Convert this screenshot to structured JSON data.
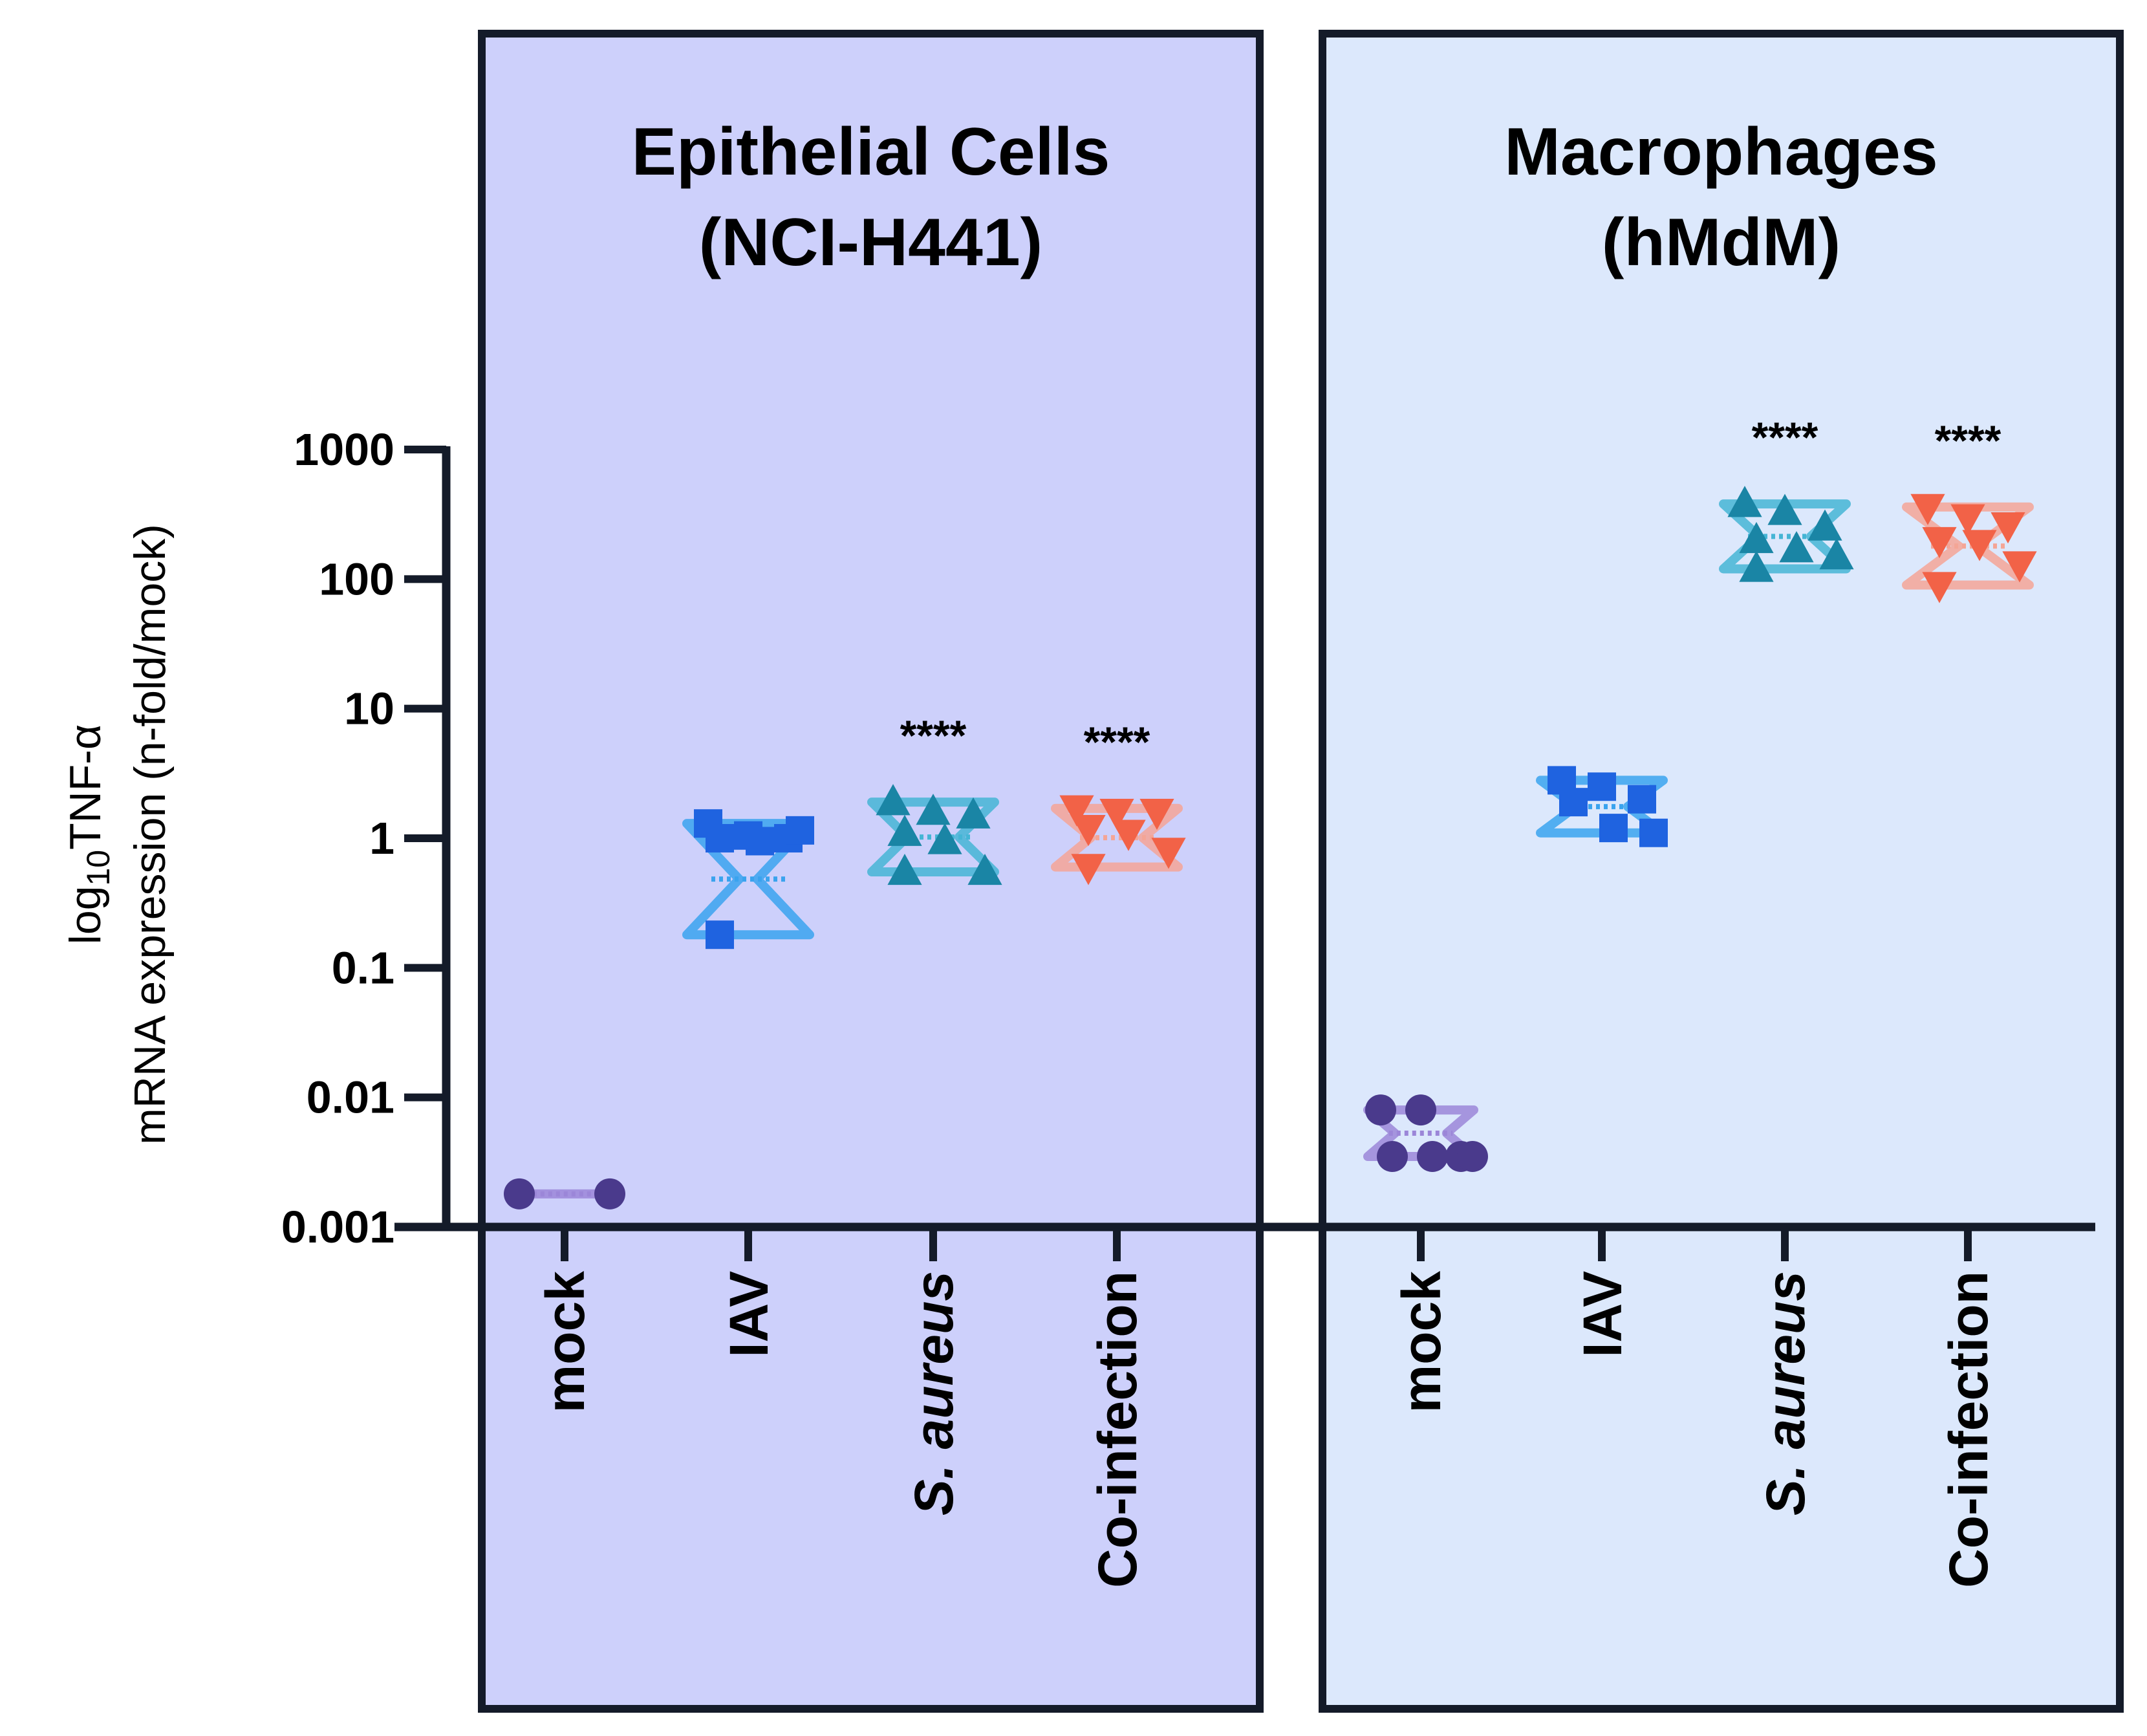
{
  "chart_data": {
    "type": "scatter",
    "subtype": "violin-dot",
    "y_axis": {
      "label_main": "log",
      "label_sub": "10",
      "label_rest": "TNF-α",
      "label_line2": "mRNA expression (n-fold/mock)",
      "scale": "log10",
      "ylim": [
        0.001,
        1000
      ],
      "ticks": [
        {
          "value": 1000,
          "label": "1000"
        },
        {
          "value": 100,
          "label": "100"
        },
        {
          "value": 10,
          "label": "10"
        },
        {
          "value": 1,
          "label": "1"
        },
        {
          "value": 0.1,
          "label": "0.1"
        },
        {
          "value": 0.01,
          "label": "0.01"
        },
        {
          "value": 0.001,
          "label": "0.001"
        }
      ]
    },
    "panels": [
      {
        "title_line1": "Epithelial Cells",
        "title_line2": "(NCI-H441)",
        "background": "#cdd0fb",
        "groups": [
          {
            "category": "mock",
            "italic": false,
            "marker": "circle",
            "color": "#4a3a8c",
            "violin_color": "#9b86d8",
            "values": [
              0.0018,
              0.0018
            ],
            "significance": ""
          },
          {
            "category": "IAV",
            "italic": false,
            "marker": "square",
            "color": "#1f63e0",
            "violin_color": "#3aa3ee",
            "values": [
              1.3,
              1.05,
              1.0,
              1.0,
              0.95,
              1.15,
              0.18
            ],
            "significance": ""
          },
          {
            "category": "S. aureus",
            "italic": true,
            "marker": "triangle-up",
            "color": "#1a85a5",
            "violin_color": "#45b5d5",
            "values": [
              1.9,
              1.6,
              1.5,
              1.1,
              0.95,
              0.55,
              0.55
            ],
            "significance": "****"
          },
          {
            "category": "Co-infection",
            "italic": false,
            "marker": "triangle-down",
            "color": "#f26247",
            "violin_color": "#f4a596",
            "values": [
              1.7,
              1.6,
              1.6,
              1.2,
              1.1,
              0.8,
              0.6
            ],
            "significance": "****"
          }
        ]
      },
      {
        "title_line1": "Macrophages",
        "title_line2": "(hMdM)",
        "background": "#dce8fc",
        "groups": [
          {
            "category": "mock",
            "italic": false,
            "marker": "circle",
            "color": "#4a3a8c",
            "violin_color": "#9b86d8",
            "values": [
              0.008,
              0.008,
              0.0035,
              0.0035,
              0.0035,
              0.0035
            ],
            "significance": ""
          },
          {
            "category": "IAV",
            "italic": false,
            "marker": "square",
            "color": "#1f63e0",
            "violin_color": "#3aa3ee",
            "values": [
              2.8,
              2.5,
              2.0,
              1.9,
              1.2,
              1.1
            ],
            "significance": ""
          },
          {
            "category": "S. aureus",
            "italic": true,
            "marker": "triangle-up",
            "color": "#1a85a5",
            "violin_color": "#45b5d5",
            "values": [
              380,
              330,
              250,
              200,
              170,
              150,
              120
            ],
            "significance": "****"
          },
          {
            "category": "Co-infection",
            "italic": false,
            "marker": "triangle-down",
            "color": "#f26247",
            "violin_color": "#f4a596",
            "values": [
              360,
              300,
              260,
              200,
              190,
              130,
              90
            ],
            "significance": "****"
          }
        ]
      }
    ]
  }
}
